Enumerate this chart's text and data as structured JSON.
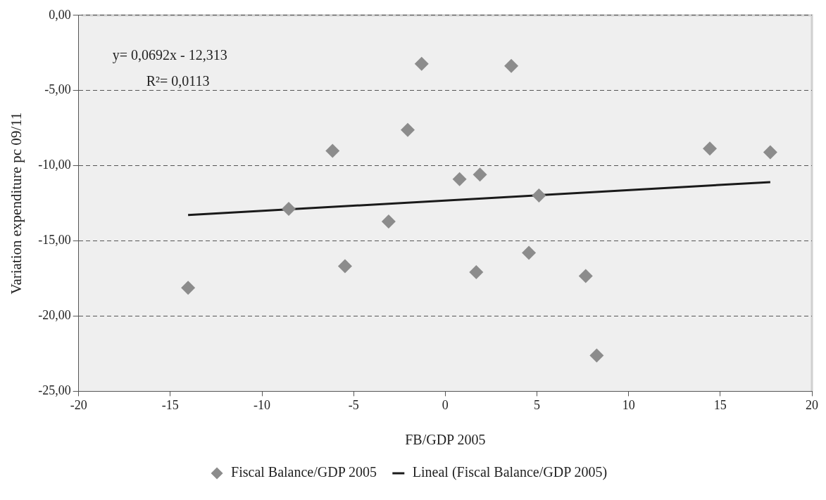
{
  "chart_data": {
    "type": "scatter",
    "xlabel": "FB/GDP 2005",
    "ylabel": "Variation expenditure pc 09/11",
    "xlim": [
      -20,
      20
    ],
    "xticks": [
      -20,
      -15,
      -10,
      -5,
      0,
      5,
      10,
      15,
      20
    ],
    "ylim": [
      -25,
      0
    ],
    "yticks": [
      {
        "value": -25,
        "label": "-25,00"
      },
      {
        "value": -20,
        "label": "-20,00"
      },
      {
        "value": -15,
        "label": "-15,00"
      },
      {
        "value": -10,
        "label": "-10,00"
      },
      {
        "value": -5,
        "label": "-5,00"
      },
      {
        "value": 0,
        "label": "0,00"
      }
    ],
    "grid": "y",
    "legend": "bottom",
    "annotations": [
      "y= 0,0692x - 12,313",
      "R²= 0,0113"
    ],
    "series": [
      {
        "name": "Fiscal Balance/GDP 2005",
        "type": "scatter",
        "color": "#8c8c8c",
        "marker": "diamond",
        "x": [
          -14.03,
          -8.54,
          -6.15,
          -5.47,
          -3.09,
          -2.05,
          -1.29,
          0.78,
          1.69,
          1.89,
          3.6,
          4.56,
          5.11,
          7.66,
          8.26,
          14.43,
          17.73
        ],
        "values": [
          -18.12,
          -12.87,
          -9.01,
          -16.68,
          -13.71,
          -7.62,
          -3.22,
          -10.89,
          -17.08,
          -10.59,
          -3.37,
          -15.79,
          -11.98,
          -17.33,
          -22.62,
          -8.86,
          -9.11
        ]
      },
      {
        "name": "Lineal (Fiscal Balance/GDP 2005)",
        "type": "line",
        "color": "#1a1a1a",
        "marker": "none",
        "line_style": "solid",
        "x": [
          -14.03,
          17.73
        ],
        "values": [
          -13.28,
          -11.09
        ]
      }
    ]
  }
}
